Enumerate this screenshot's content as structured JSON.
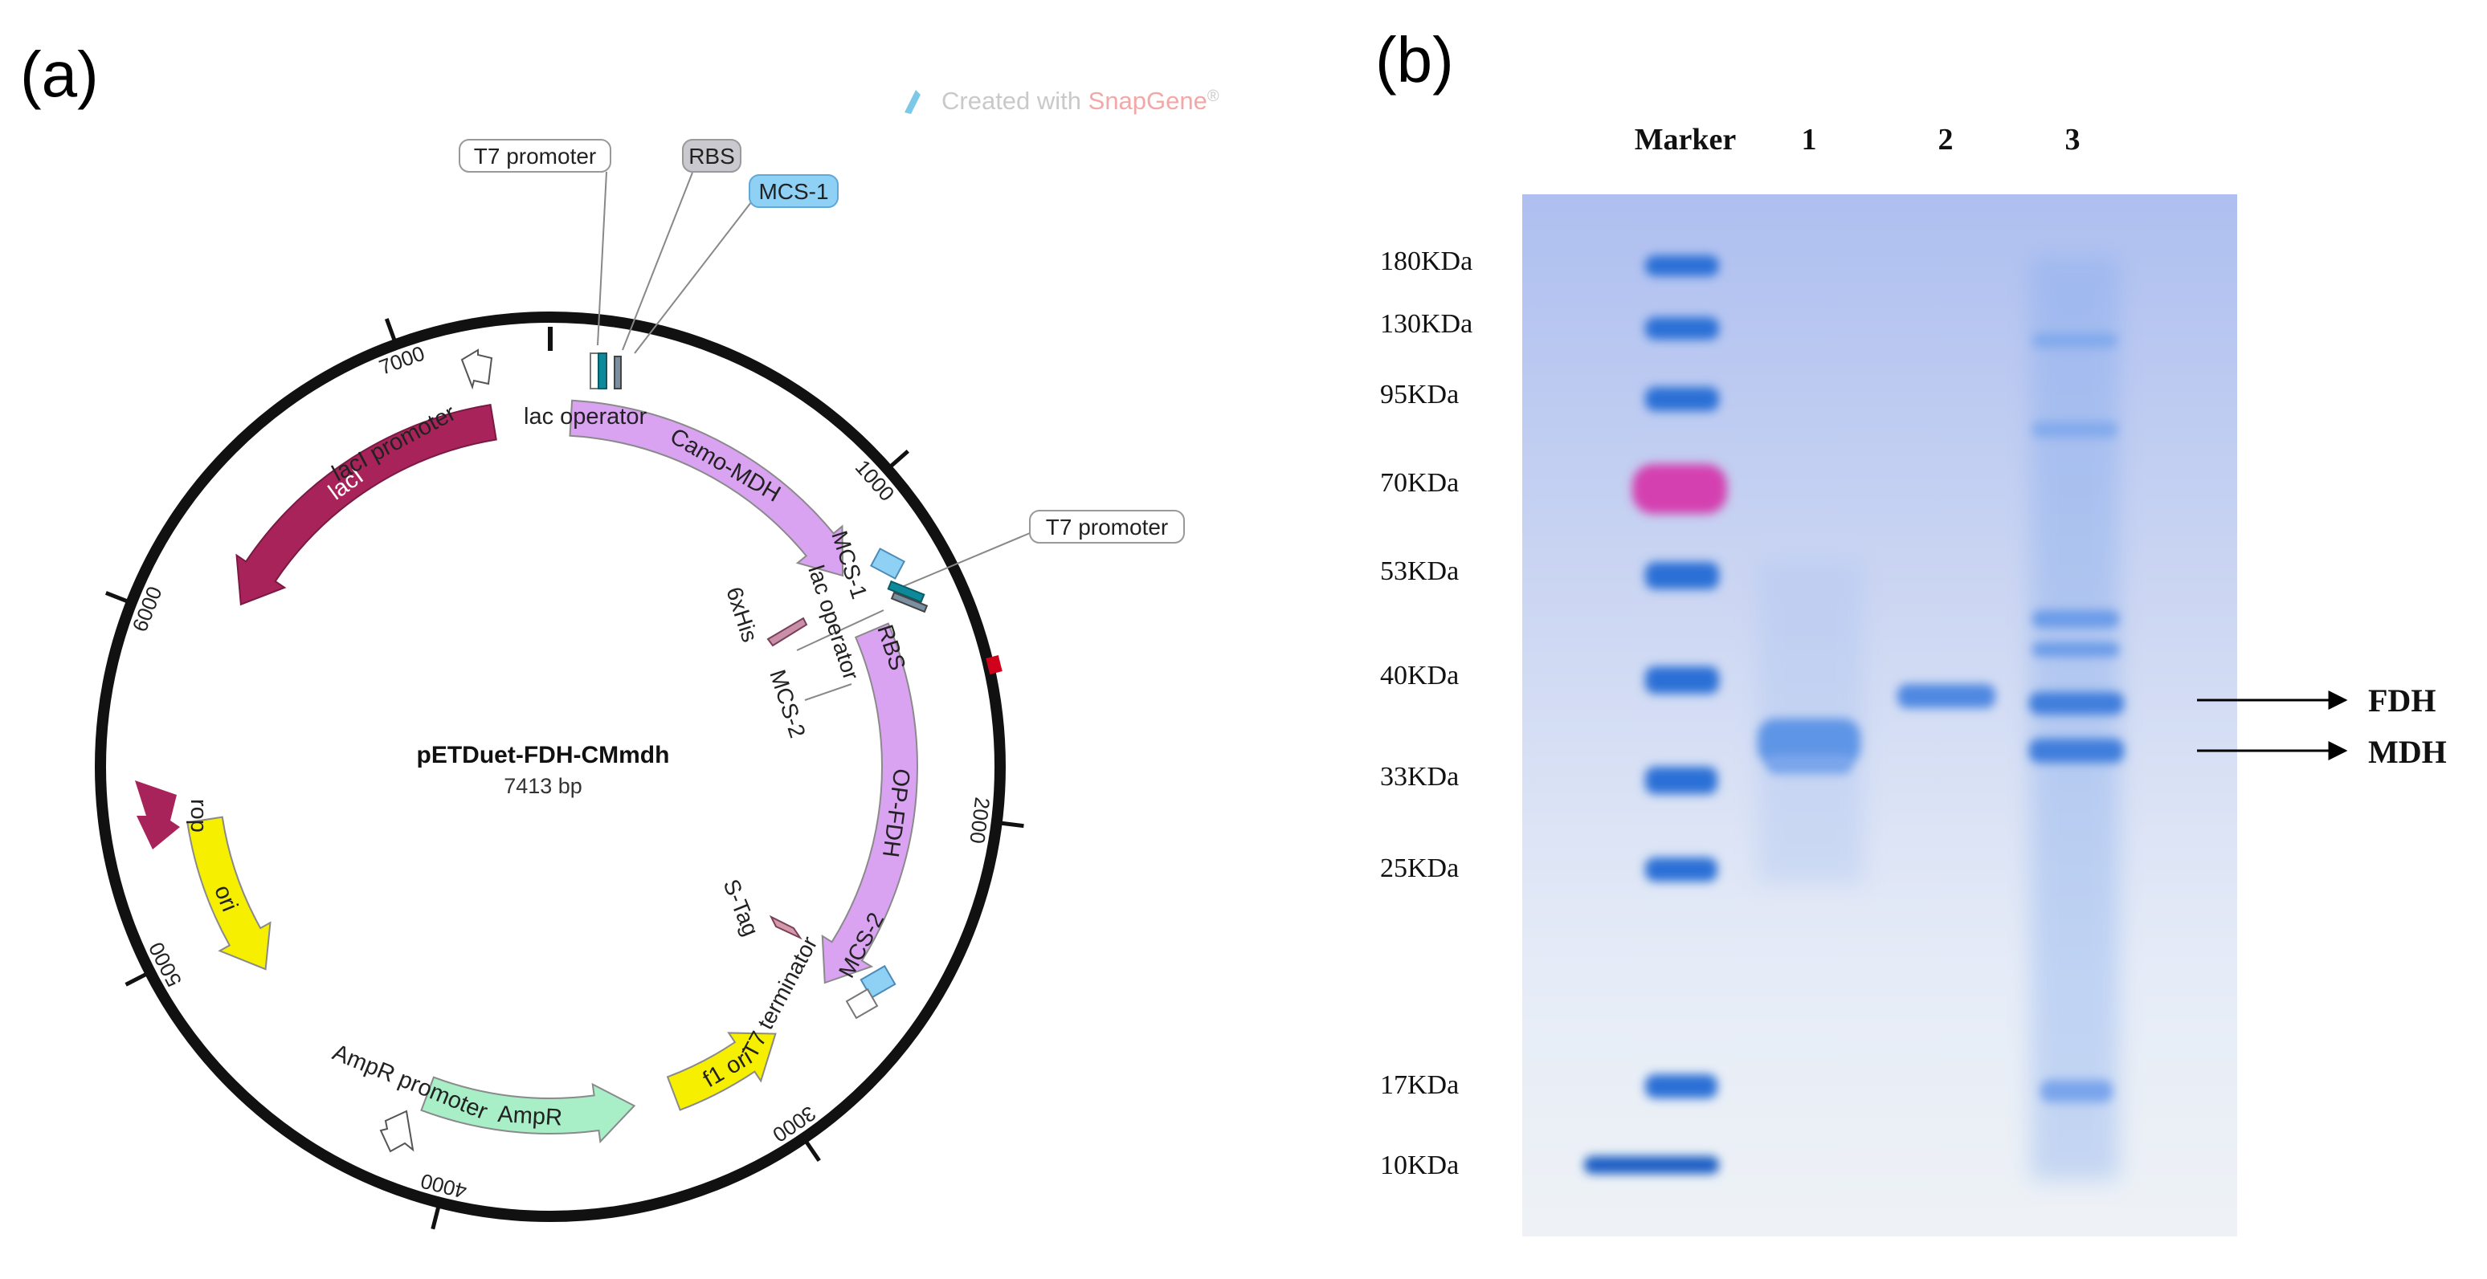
{
  "panel_a": {
    "label": "(a)",
    "watermark": {
      "prefix": "Created with ",
      "brand": "SnapGene",
      "mark": "®",
      "brand_color": "#f3a8a8"
    },
    "plasmid": {
      "name": "pETDuet-FDH-CMmdh",
      "size_text": "7413 bp",
      "total_bp": 7413,
      "ticks": [
        {
          "bp": 1000,
          "label": "1000"
        },
        {
          "bp": 2000,
          "label": "2000"
        },
        {
          "bp": 3000,
          "label": "3000"
        },
        {
          "bp": 4000,
          "label": "4000"
        },
        {
          "bp": 5000,
          "label": "5000"
        },
        {
          "bp": 6000,
          "label": "6000"
        },
        {
          "bp": 7000,
          "label": "7000"
        }
      ],
      "features": [
        {
          "id": "camo-mdh",
          "label": "Camo-MDH",
          "start": 70,
          "end": 1170,
          "strand": 1,
          "color": "#d9a3f2"
        },
        {
          "id": "op-fdh",
          "label": "OP-FDH",
          "start": 1380,
          "end": 2640,
          "strand": 1,
          "color": "#d9a3f2"
        },
        {
          "id": "f1-ori",
          "label": "f1 ori",
          "start": 2880,
          "end": 3280,
          "strand": -1,
          "color": "#f6f000"
        },
        {
          "id": "ampr",
          "label": "AmpR",
          "start": 3420,
          "end": 4130,
          "strand": -1,
          "color": "#a8efc8"
        },
        {
          "id": "ori",
          "label": "ori",
          "start": 4830,
          "end": 5380,
          "strand": -1,
          "color": "#f6f000"
        },
        {
          "id": "laci",
          "label": "lacI",
          "start": 6130,
          "end": 7220,
          "strand": -1,
          "color": "#a8235a"
        }
      ],
      "labels": {
        "t7_promoter_1": "T7 promoter",
        "rbs_1": "RBS",
        "mcs_1_top": "MCS-1",
        "lac_operator_1": "lac operator",
        "laci_promoter": "lacI promoter",
        "t7_promoter_2": "T7 promoter",
        "mcs_1_inner": "MCS-1",
        "lac_operator_2": "lac operator",
        "rbs_2": "RBS",
        "his_tag": "6xHis",
        "mcs_2_inner": "MCS-2",
        "s_tag": "S-Tag",
        "t7_terminator": "T7 terminator",
        "mcs_2_lower": "MCS-2",
        "ampr_promoter": "AmpR promoter",
        "rop": "rop"
      }
    }
  },
  "panel_b": {
    "label": "(b)",
    "lanes": [
      {
        "id": "marker",
        "label": "Marker"
      },
      {
        "id": "lane1",
        "label": "1"
      },
      {
        "id": "lane2",
        "label": "2"
      },
      {
        "id": "lane3",
        "label": "3"
      }
    ],
    "ladder": [
      {
        "label": "180KDa",
        "kda": 180
      },
      {
        "label": "130KDa",
        "kda": 130
      },
      {
        "label": "95KDa",
        "kda": 95
      },
      {
        "label": "70KDa",
        "kda": 70
      },
      {
        "label": "53KDa",
        "kda": 53
      },
      {
        "label": "40KDa",
        "kda": 40
      },
      {
        "label": "33KDa",
        "kda": 33
      },
      {
        "label": "25KDa",
        "kda": 25
      },
      {
        "label": "17KDa",
        "kda": 17
      },
      {
        "label": "10KDa",
        "kda": 10
      }
    ],
    "annotations": [
      {
        "id": "fdh",
        "label": "FDH"
      },
      {
        "id": "mdh",
        "label": "MDH"
      }
    ],
    "colors": {
      "gel_base": "#dfe6f5",
      "band": "#2b6fd6",
      "marker_70": "#d43fb0"
    }
  }
}
